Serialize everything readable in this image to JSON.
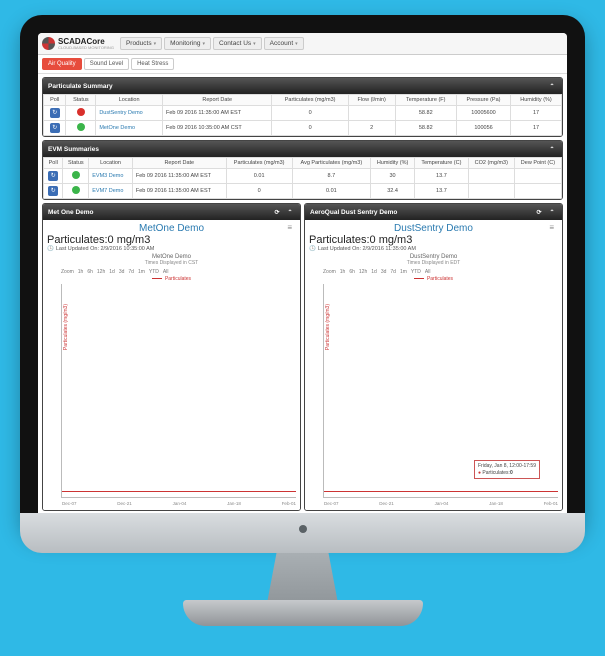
{
  "brand": {
    "name": "SCADACore",
    "tagline": "CLOUD-BASED MONITORING"
  },
  "nav": [
    {
      "label": "Products"
    },
    {
      "label": "Monitoring"
    },
    {
      "label": "Contact Us"
    },
    {
      "label": "Account"
    }
  ],
  "tabs": [
    {
      "label": "Air Quality",
      "active": true
    },
    {
      "label": "Sound Level",
      "active": false
    },
    {
      "label": "Heat Stress",
      "active": false
    }
  ],
  "particulate_summary": {
    "title": "Particulate Summary",
    "columns": [
      "Poll",
      "Status",
      "Location",
      "Report Date",
      "Particulates (mg/m3)",
      "Flow (l/min)",
      "Temperature (F)",
      "Pressure (Pa)",
      "Humidity (%)"
    ],
    "rows": [
      {
        "status_color": "#d9302c",
        "location": "DustSentry Demo",
        "report_date": "Feb 09 2016 11:35:00 AM EST",
        "particulates": "0",
        "flow": "",
        "temp": "58.82",
        "pressure": "10005600",
        "humidity": "17"
      },
      {
        "status_color": "#3bb54a",
        "location": "MetOne Demo",
        "report_date": "Feb 09 2016 10:35:00 AM CST",
        "particulates": "0",
        "flow": "2",
        "temp": "58.82",
        "pressure": "100056",
        "humidity": "17"
      }
    ]
  },
  "evm_summaries": {
    "title": "EVM Summaries",
    "columns": [
      "Poll",
      "Status",
      "Location",
      "Report Date",
      "Particulates (mg/m3)",
      "Avg Particulates (mg/m3)",
      "Humidity (%)",
      "Temperature (C)",
      "CO2 (mg/m3)",
      "Dew Point (C)"
    ],
    "rows": [
      {
        "status_color": "#3bb54a",
        "location": "EVM3 Demo",
        "report_date": "Feb 09 2016 11:35:00 AM EST",
        "particulates": "0.01",
        "avg": "8.7",
        "humidity": "30",
        "temp": "13.7",
        "co2": "",
        "dew": ""
      },
      {
        "status_color": "#3bb54a",
        "location": "EVM7 Demo",
        "report_date": "Feb 09 2016 11:35:00 AM EST",
        "particulates": "0",
        "avg": "0.01",
        "humidity": "32.4",
        "temp": "13.7",
        "co2": "",
        "dew": ""
      }
    ]
  },
  "charts": {
    "left": {
      "panel_title": "Met One Demo",
      "title": "MetOne Demo",
      "metric_label": "Particulates:",
      "metric_value": "0 mg/m3",
      "updated": "Last Updated On: 2/9/2016 10:35:00 AM",
      "sub": "MetOne Demo",
      "tz": "Times Displayed in CST",
      "ylab": "Particulates (mg/m3)",
      "zoom": [
        "Zoom",
        "1h",
        "6h",
        "12h",
        "1d",
        "3d",
        "7d",
        "1m",
        "YTD",
        "All"
      ],
      "legend": "Particulates",
      "xticks": [
        "Dec-07",
        "Dec-21",
        "Jan-04",
        "Jan-18",
        "Feb-01"
      ],
      "color": "#c0392b"
    },
    "right": {
      "panel_title": "AeroQual Dust Sentry Demo",
      "title": "DustSentry Demo",
      "metric_label": "Particulates:",
      "metric_value": "0 mg/m3",
      "updated": "Last Updated On: 2/9/2016 11:35:00 AM",
      "sub": "DustSentry Demo",
      "tz": "Times Displayed in EDT",
      "ylab": "Particulates (mg/m3)",
      "zoom": [
        "Zoom",
        "1h",
        "6h",
        "12h",
        "1d",
        "3d",
        "7d",
        "1m",
        "YTD",
        "All"
      ],
      "legend": "Particulates",
      "xticks": [
        "Dec-07",
        "Dec-21",
        "Jan-04",
        "Jan-18",
        "Feb-01"
      ],
      "color": "#c0392b",
      "tooltip": {
        "time": "Friday, Jan 8, 12:00-17:59",
        "label": "Particulates:",
        "value": "0"
      }
    }
  },
  "colors": {
    "accent": "#e74c3c",
    "link": "#2a7ab0",
    "panel_bg": "#222222"
  }
}
